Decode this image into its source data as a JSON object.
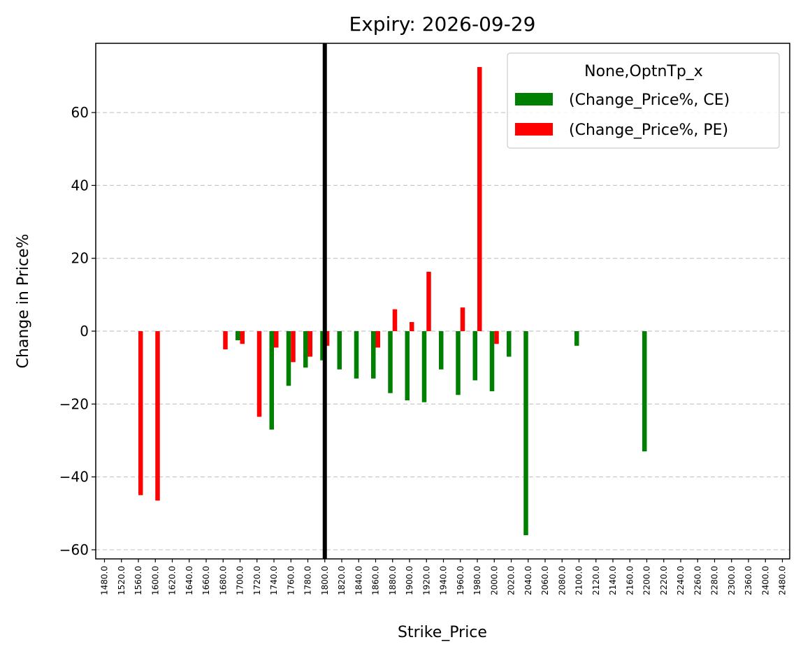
{
  "chart_data": {
    "type": "bar",
    "title": "Expiry: 2026-09-29",
    "xlabel": "Strike_Price",
    "ylabel": "Change in Price%",
    "ylim": [
      -62.5,
      79
    ],
    "yticks": [
      -60,
      -40,
      -20,
      0,
      20,
      40,
      60
    ],
    "ytick_labels": [
      "−60",
      "−40",
      "−20",
      "0",
      "20",
      "40",
      "60"
    ],
    "grid": "horizontal dashed",
    "categories": [
      "1480.0",
      "1520.0",
      "1560.0",
      "1600.0",
      "1620.0",
      "1640.0",
      "1660.0",
      "1680.0",
      "1700.0",
      "1720.0",
      "1740.0",
      "1760.0",
      "1780.0",
      "1800.0",
      "1820.0",
      "1840.0",
      "1860.0",
      "1880.0",
      "1900.0",
      "1920.0",
      "1940.0",
      "1960.0",
      "1980.0",
      "2000.0",
      "2020.0",
      "2040.0",
      "2060.0",
      "2080.0",
      "2100.0",
      "2120.0",
      "2140.0",
      "2160.0",
      "2200.0",
      "2220.0",
      "2240.0",
      "2260.0",
      "2280.0",
      "2300.0",
      "2360.0",
      "2400.0",
      "2480.0"
    ],
    "series": [
      {
        "name": "(Change_Price%, CE)",
        "color": "#008000",
        "values": [
          null,
          null,
          null,
          null,
          null,
          null,
          null,
          null,
          -2.5,
          null,
          -27,
          -15,
          -10,
          -8,
          -10.5,
          -13,
          -13,
          -17,
          -19,
          -19.5,
          -10.5,
          -17.5,
          -13.5,
          -16.5,
          -7,
          -56,
          null,
          null,
          -4,
          null,
          null,
          null,
          -33,
          null,
          null,
          null,
          null,
          null,
          null,
          null,
          null
        ]
      },
      {
        "name": "(Change_Price%, PE)",
        "color": "#ff0000",
        "values": [
          null,
          null,
          -45,
          -46.5,
          null,
          null,
          null,
          -5,
          -3.5,
          -23.5,
          -4.5,
          -8.5,
          -7,
          -4,
          null,
          null,
          -4.5,
          6,
          2.5,
          16.3,
          null,
          6.5,
          72.5,
          -3.5,
          null,
          null,
          null,
          null,
          null,
          null,
          null,
          null,
          null,
          null,
          null,
          null,
          null,
          null,
          null,
          null,
          null
        ]
      }
    ],
    "vline_category": "1800.0",
    "legend": {
      "title": "None,OptnTp_x",
      "placement": "top-right"
    }
  }
}
